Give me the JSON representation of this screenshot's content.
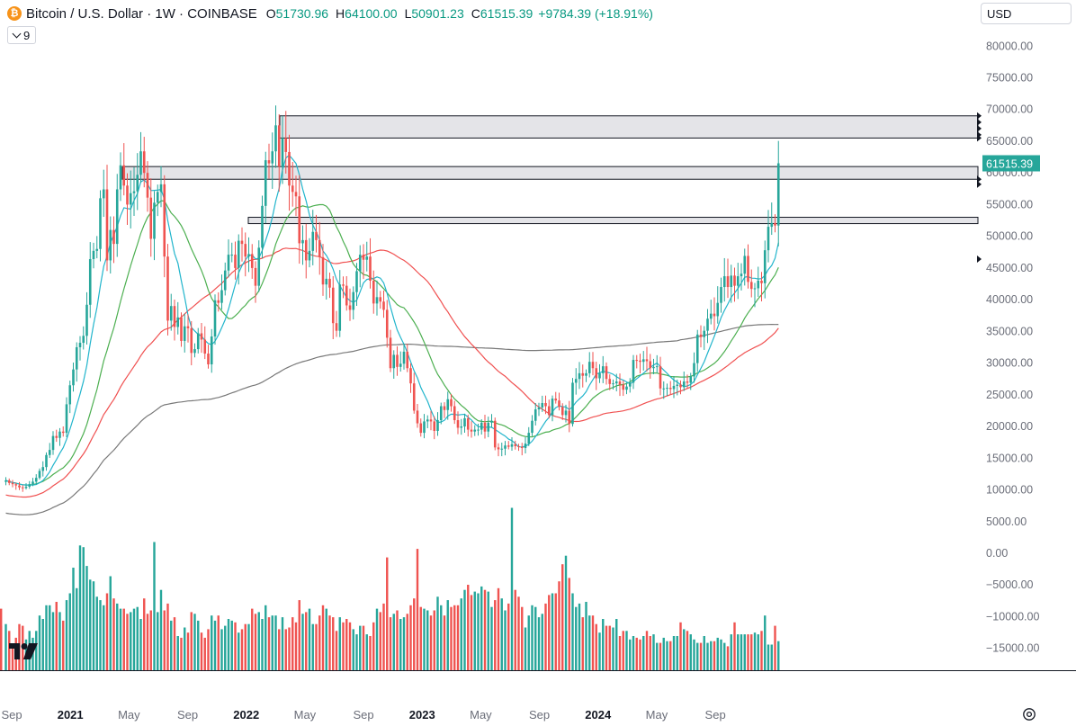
{
  "header": {
    "coin_icon": "bitcoin-icon",
    "coin_icon_glyph": "₿",
    "symbol": "Bitcoin / U.S. Dollar · 1W · COINBASE",
    "ohlc": [
      {
        "key": "O",
        "value": "51730.96"
      },
      {
        "key": "H",
        "value": "64100.00"
      },
      {
        "key": "L",
        "value": "50901.23"
      },
      {
        "key": "C",
        "value": "61515.39"
      }
    ],
    "change": "+9784.39 (+18.91%)",
    "indicators_count": "9"
  },
  "currency": "USD",
  "last_price_label": "61515.39",
  "colors": {
    "up": "#26a69a",
    "down": "#ef5350",
    "ma_cyan": "#22b5cc",
    "ma_green": "#4caf50",
    "ma_red": "#f05050",
    "ma_gray": "#787878",
    "zone_fill": "#e4e4e8",
    "axis_text": "#6a6d78"
  },
  "chart_data": {
    "type": "candlestick",
    "title": "Bitcoin / U.S. Dollar · 1W · COINBASE",
    "ylim": [
      -20000,
      85000
    ],
    "price_ticks": [
      "80000.00",
      "75000.00",
      "70000.00",
      "65000.00",
      "60000.00",
      "55000.00",
      "50000.00",
      "45000.00",
      "40000.00",
      "35000.00",
      "30000.00",
      "25000.00",
      "20000.00",
      "15000.00",
      "10000.00",
      "5000.00",
      "0.00",
      "−5000.00",
      "−10000.00",
      "−15000.00"
    ],
    "time_ticks": [
      {
        "label": "Sep",
        "bold": false,
        "date": "2020-09"
      },
      {
        "label": "2021",
        "bold": true,
        "date": "2021-01"
      },
      {
        "label": "May",
        "bold": false,
        "date": "2021-05"
      },
      {
        "label": "Sep",
        "bold": false,
        "date": "2021-09"
      },
      {
        "label": "2022",
        "bold": true,
        "date": "2022-01"
      },
      {
        "label": "May",
        "bold": false,
        "date": "2022-05"
      },
      {
        "label": "Sep",
        "bold": false,
        "date": "2022-09"
      },
      {
        "label": "2023",
        "bold": true,
        "date": "2023-01"
      },
      {
        "label": "May",
        "bold": false,
        "date": "2023-05"
      },
      {
        "label": "Sep",
        "bold": false,
        "date": "2023-09"
      },
      {
        "label": "2024",
        "bold": true,
        "date": "2024-01"
      },
      {
        "label": "May",
        "bold": false,
        "date": "2024-05"
      },
      {
        "label": "Sep",
        "bold": false,
        "date": "2024-09"
      }
    ],
    "weekly_closes": [
      11500,
      11100,
      10900,
      10700,
      10400,
      10300,
      10500,
      10900,
      11300,
      11900,
      13000,
      13600,
      15500,
      16300,
      18500,
      18200,
      19200,
      19000,
      23500,
      26500,
      29000,
      32500,
      33200,
      34300,
      39200,
      46400,
      47700,
      48000,
      56000,
      57400,
      46200,
      51000,
      48800,
      57400,
      61200,
      58000,
      55000,
      56800,
      57100,
      59700,
      63400,
      60000,
      56100,
      49600,
      55300,
      57000,
      58200,
      46800,
      36700,
      39000,
      35700,
      37200,
      33500,
      35800,
      35500,
      31600,
      32200,
      34700,
      33700,
      31500,
      29800,
      34200,
      39900,
      39500,
      41500,
      44600,
      47100,
      47100,
      45000,
      49300,
      48800,
      46800,
      47200,
      45000,
      42200,
      48200,
      54800,
      62000,
      61500,
      63400,
      67500,
      61000,
      65500,
      63300,
      58000,
      57000,
      56300,
      48900,
      49400,
      46200,
      47700,
      50700,
      49400,
      46700,
      42400,
      43300,
      41900,
      36300,
      35100,
      42400,
      42200,
      39100,
      38400,
      41200,
      44500,
      47100,
      46300,
      46800,
      43000,
      39400,
      40400,
      39700,
      38400,
      34000,
      29200,
      31300,
      29400,
      29900,
      31800,
      29200,
      26800,
      22500,
      20500,
      19000,
      20800,
      21100,
      20800,
      19300,
      21000,
      23200,
      22600,
      24300,
      23200,
      21000,
      19800,
      20000,
      21300,
      19500,
      19200,
      19500,
      19500,
      20600,
      19200,
      20600,
      20900,
      16700,
      16400,
      16500,
      17000,
      16800,
      17200,
      16900,
      16800,
      16600,
      17300,
      19000,
      20900,
      22700,
      23000,
      23700,
      23200,
      21800,
      24400,
      24100,
      23100,
      21800,
      22500,
      20400,
      26900,
      27500,
      28400,
      28000,
      28400,
      30200,
      29200,
      27600,
      28400,
      29500,
      27500,
      26700,
      26800,
      27100,
      26600,
      25800,
      26300,
      26900,
      30500,
      30400,
      30200,
      30600,
      30300,
      29200,
      29400,
      29500,
      26000,
      26000,
      26100,
      25900,
      26400,
      26600,
      26200,
      27100,
      26900,
      27900,
      30000,
      34500,
      34100,
      35100,
      37000,
      37800,
      37400,
      39500,
      42000,
      43700,
      42000,
      43800,
      42200,
      43700,
      44100,
      46900,
      42800,
      41700,
      41800,
      43000,
      42600,
      47800,
      51500,
      52100,
      51700,
      61515
    ]
  },
  "volume_bars": [
    0.27,
    0.23,
    0.15,
    0.19,
    0.27,
    0.26,
    0.18,
    0.23,
    0.19,
    0.23,
    0.32,
    0.3,
    0.38,
    0.38,
    0.34,
    0.4,
    0.34,
    0.29,
    0.41,
    0.45,
    0.6,
    0.48,
    0.73,
    0.72,
    0.61,
    0.53,
    0.52,
    0.43,
    0.41,
    0.38,
    0.45,
    0.55,
    0.42,
    0.39,
    0.36,
    0.36,
    0.33,
    0.34,
    0.36,
    0.37,
    0.3,
    0.42,
    0.33,
    0.35,
    0.75,
    0.34,
    0.47,
    0.35,
    0.39,
    0.29,
    0.31,
    0.2,
    0.19,
    0.25,
    0.22,
    0.34,
    0.33,
    0.29,
    0.22,
    0.19,
    0.24,
    0.32,
    0.29,
    0.32,
    0.24,
    0.26,
    0.3,
    0.29,
    0.28,
    0.22,
    0.24,
    0.27,
    0.27,
    0.36,
    0.33,
    0.34,
    0.3,
    0.38,
    0.31,
    0.32,
    0.32,
    0.24,
    0.31,
    0.24,
    0.25,
    0.31,
    0.28,
    0.41,
    0.33,
    0.34,
    0.36,
    0.27,
    0.27,
    0.32,
    0.38,
    0.36,
    0.32,
    0.31,
    0.23,
    0.31,
    0.28,
    0.3,
    0.28,
    0.24,
    0.21,
    0.26,
    0.26,
    0.21,
    0.2,
    0.28,
    0.36,
    0.34,
    0.39,
    0.66,
    0.31,
    0.33,
    0.35,
    0.3,
    0.31,
    0.33,
    0.38,
    0.42,
    0.71,
    0.37,
    0.36,
    0.35,
    0.32,
    0.35,
    0.43,
    0.38,
    0.32,
    0.41,
    0.37,
    0.38,
    0.38,
    0.42,
    0.47,
    0.5,
    0.44,
    0.46,
    0.45,
    0.49,
    0.47,
    0.46,
    0.37,
    0.41,
    0.48,
    0.42,
    0.35,
    0.39,
    0.95,
    0.47,
    0.43,
    0.37,
    0.25,
    0.32,
    0.38,
    0.37,
    0.31,
    0.33,
    0.39,
    0.44,
    0.45,
    0.45,
    0.52,
    0.62,
    0.67,
    0.54,
    0.45,
    0.37,
    0.39,
    0.31,
    0.4,
    0.32,
    0.32,
    0.27,
    0.22,
    0.3,
    0.26,
    0.26,
    0.25,
    0.3,
    0.2,
    0.23,
    0.23,
    0.18,
    0.2,
    0.19,
    0.18,
    0.2,
    0.23,
    0.2,
    0.21,
    0.16,
    0.16,
    0.19,
    0.17,
    0.17,
    0.2,
    0.2,
    0.28,
    0.24,
    0.23,
    0.21,
    0.18,
    0.16,
    0.16,
    0.2,
    0.16,
    0.17,
    0.17,
    0.19,
    0.18,
    0.16,
    0.14,
    0.21,
    0.28,
    0.21,
    0.21,
    0.21,
    0.21,
    0.21,
    0.22,
    0.21,
    0.23,
    0.32,
    0.15,
    0.15,
    0.26,
    0.17,
    0.26,
    0.36
  ]
}
